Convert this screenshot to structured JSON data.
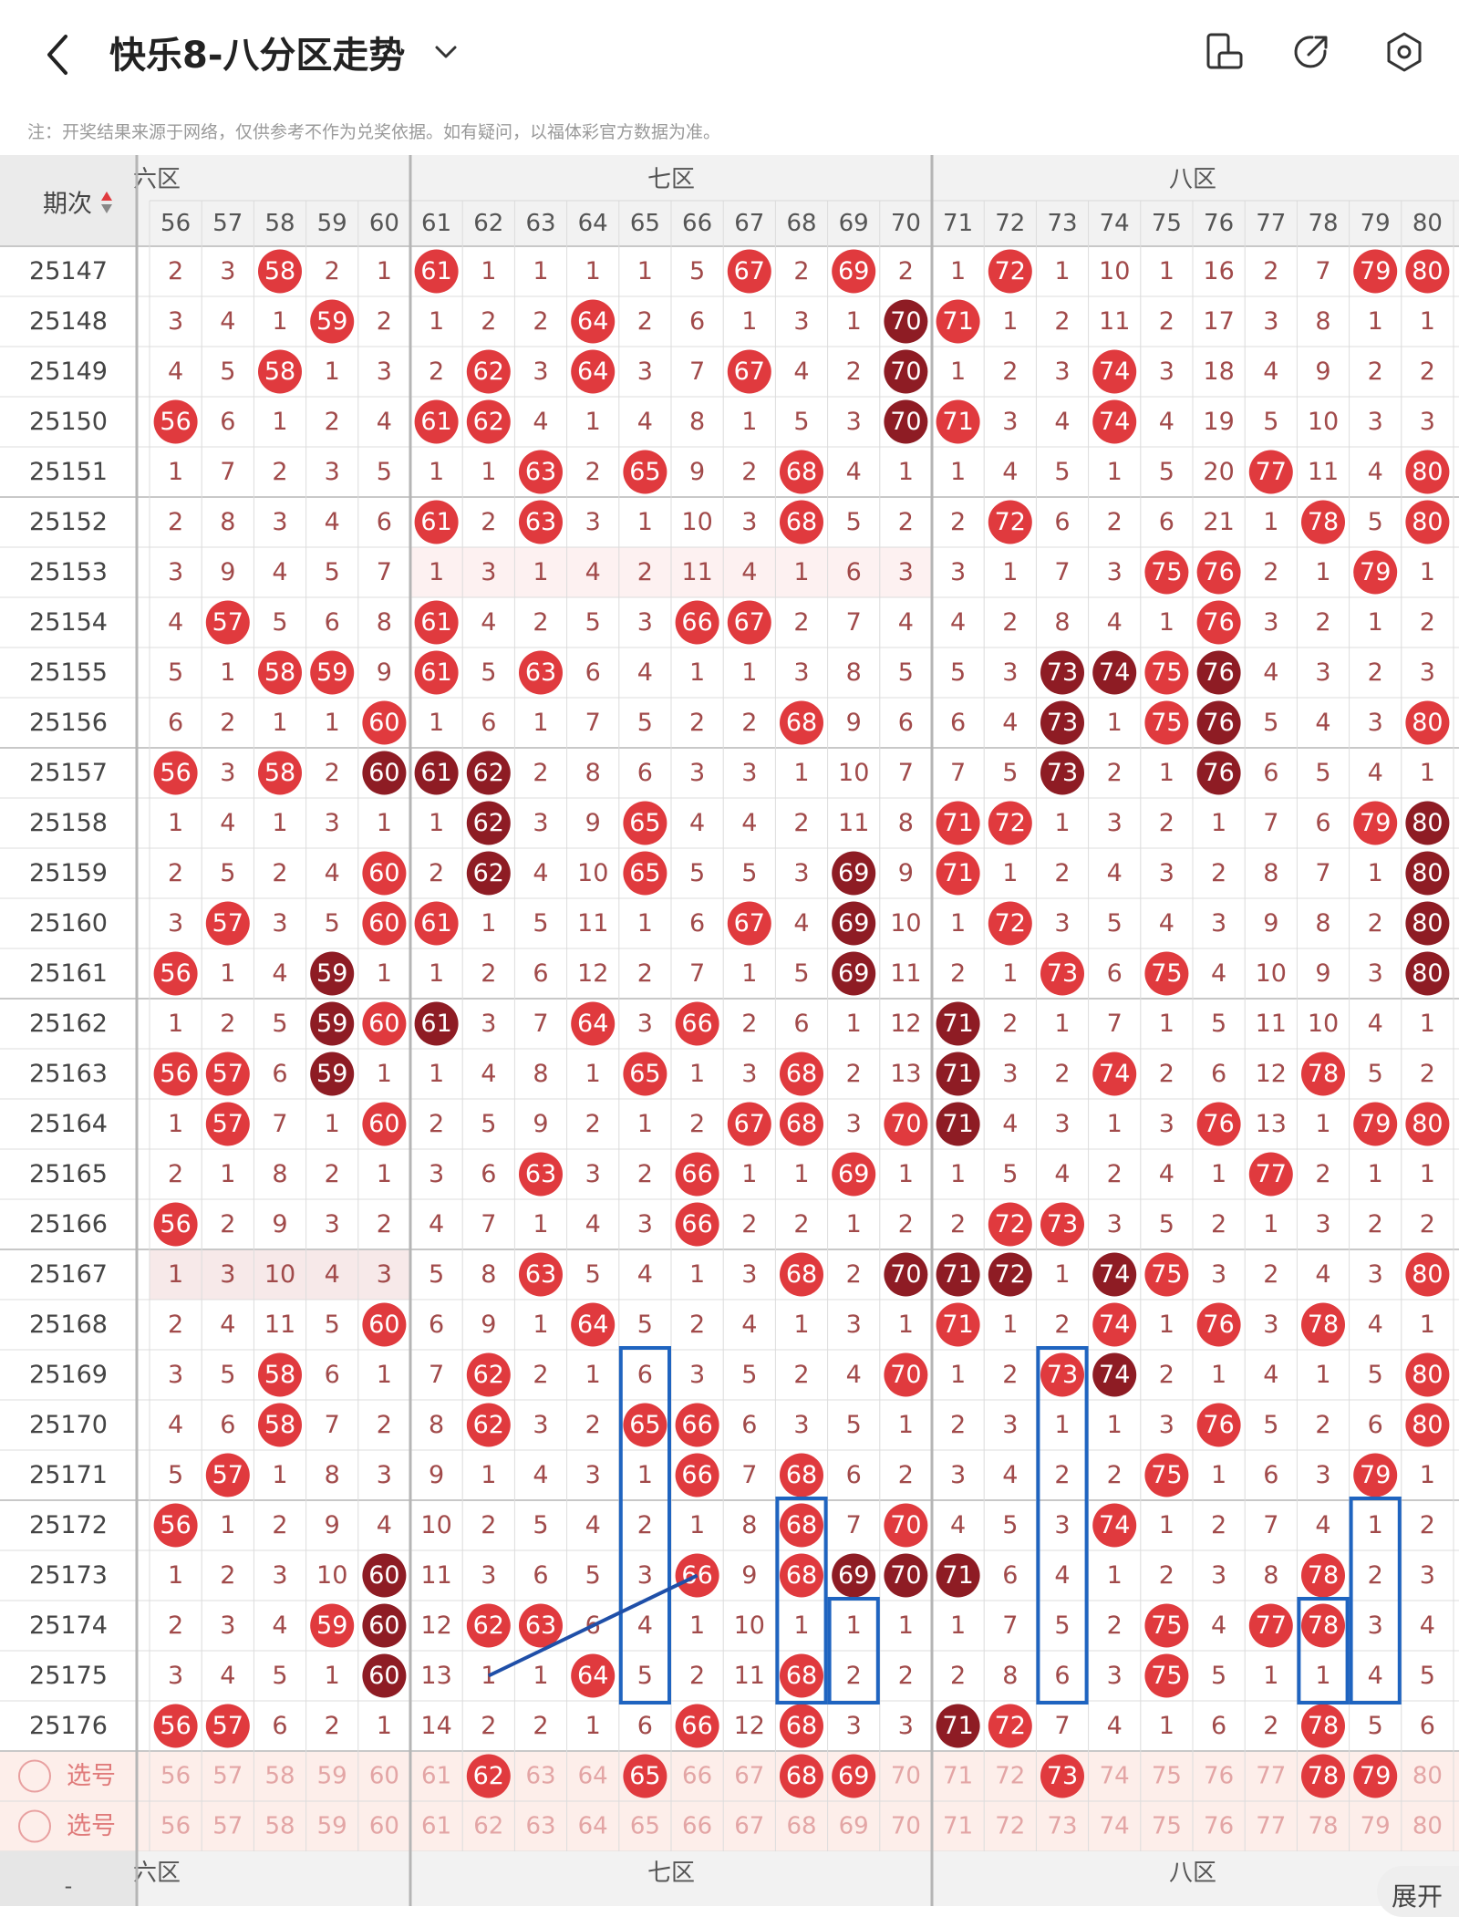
{
  "header": {
    "title": "快乐8-八分区走势",
    "note": "注：开奖结果来源于网络，仅供参考不作为兑奖依据。如有疑问，以福体彩官方数据为准。",
    "icons": [
      "back-arrow-icon",
      "chevron-down-icon",
      "device-rotate-icon",
      "share-icon",
      "settings-icon"
    ]
  },
  "table": {
    "period_header": "期次",
    "zones": [
      {
        "label": "六区",
        "shown": "六区"
      },
      {
        "label": "七区",
        "shown": "七区"
      },
      {
        "label": "八区",
        "shown": "八区"
      }
    ],
    "columns": [
      "56",
      "57",
      "58",
      "59",
      "60",
      "61",
      "62",
      "63",
      "64",
      "65",
      "66",
      "67",
      "68",
      "69",
      "70",
      "71",
      "72",
      "73",
      "74",
      "75",
      "76",
      "77",
      "78",
      "79",
      "80"
    ],
    "rows": [
      {
        "period": "25147",
        "cells": [
          "2",
          "3",
          "58",
          "2",
          "1",
          "61",
          "1",
          "1",
          "1",
          "1",
          "5",
          "67",
          "2",
          "69",
          "2",
          "1",
          "72",
          "1",
          "10",
          "1",
          "16",
          "2",
          "7",
          "79",
          "80"
        ]
      },
      {
        "period": "25148",
        "cells": [
          "3",
          "4",
          "1",
          "59",
          "2",
          "1",
          "2",
          "2",
          "64",
          "2",
          "6",
          "1",
          "3",
          "1",
          "70",
          "71",
          "1",
          "2",
          "11",
          "2",
          "17",
          "3",
          "8",
          "1",
          "1"
        ]
      },
      {
        "period": "25149",
        "cells": [
          "4",
          "5",
          "58",
          "1",
          "3",
          "2",
          "62",
          "3",
          "64",
          "3",
          "7",
          "67",
          "4",
          "2",
          "70",
          "1",
          "2",
          "3",
          "74",
          "3",
          "18",
          "4",
          "9",
          "2",
          "2"
        ]
      },
      {
        "period": "25150",
        "cells": [
          "56",
          "6",
          "1",
          "2",
          "4",
          "61",
          "62",
          "4",
          "1",
          "4",
          "8",
          "1",
          "5",
          "3",
          "70",
          "71",
          "3",
          "4",
          "74",
          "4",
          "19",
          "5",
          "10",
          "3",
          "3"
        ]
      },
      {
        "period": "25151",
        "cells": [
          "1",
          "7",
          "2",
          "3",
          "5",
          "1",
          "1",
          "63",
          "2",
          "65",
          "9",
          "2",
          "68",
          "4",
          "1",
          "1",
          "4",
          "5",
          "1",
          "5",
          "20",
          "77",
          "11",
          "4",
          "80"
        ]
      },
      {
        "period": "25152",
        "cells": [
          "2",
          "8",
          "3",
          "4",
          "6",
          "61",
          "2",
          "63",
          "3",
          "1",
          "10",
          "3",
          "68",
          "5",
          "2",
          "2",
          "72",
          "6",
          "2",
          "6",
          "21",
          "1",
          "78",
          "5",
          "80"
        ]
      },
      {
        "period": "25153",
        "cells": [
          "3",
          "9",
          "4",
          "5",
          "7",
          "1",
          "3",
          "1",
          "4",
          "2",
          "11",
          "4",
          "1",
          "6",
          "3",
          "3",
          "1",
          "7",
          "3",
          "75",
          "76",
          "2",
          "1",
          "79",
          "1"
        ]
      },
      {
        "period": "25154",
        "cells": [
          "4",
          "57",
          "5",
          "6",
          "8",
          "61",
          "4",
          "2",
          "5",
          "3",
          "66",
          "67",
          "2",
          "7",
          "4",
          "4",
          "2",
          "8",
          "4",
          "1",
          "76",
          "3",
          "2",
          "1",
          "2"
        ]
      },
      {
        "period": "25155",
        "cells": [
          "5",
          "1",
          "58",
          "59",
          "9",
          "61",
          "5",
          "63",
          "6",
          "4",
          "1",
          "1",
          "3",
          "8",
          "5",
          "5",
          "3",
          "73",
          "74",
          "75",
          "76",
          "4",
          "3",
          "2",
          "3"
        ]
      },
      {
        "period": "25156",
        "cells": [
          "6",
          "2",
          "1",
          "1",
          "60",
          "1",
          "6",
          "1",
          "7",
          "5",
          "2",
          "2",
          "68",
          "9",
          "6",
          "6",
          "4",
          "73",
          "1",
          "75",
          "76",
          "5",
          "4",
          "3",
          "80"
        ]
      },
      {
        "period": "25157",
        "cells": [
          "56",
          "3",
          "58",
          "2",
          "60",
          "61",
          "62",
          "2",
          "8",
          "6",
          "3",
          "3",
          "1",
          "10",
          "7",
          "7",
          "5",
          "73",
          "2",
          "1",
          "76",
          "6",
          "5",
          "4",
          "1"
        ]
      },
      {
        "period": "25158",
        "cells": [
          "1",
          "4",
          "1",
          "3",
          "1",
          "1",
          "62",
          "3",
          "9",
          "65",
          "4",
          "4",
          "2",
          "11",
          "8",
          "71",
          "72",
          "1",
          "3",
          "2",
          "1",
          "7",
          "6",
          "79",
          "80"
        ]
      },
      {
        "period": "25159",
        "cells": [
          "2",
          "5",
          "2",
          "4",
          "60",
          "2",
          "62",
          "4",
          "10",
          "65",
          "5",
          "5",
          "3",
          "69",
          "9",
          "71",
          "1",
          "2",
          "4",
          "3",
          "2",
          "8",
          "7",
          "1",
          "80"
        ]
      },
      {
        "period": "25160",
        "cells": [
          "3",
          "57",
          "3",
          "5",
          "60",
          "61",
          "1",
          "5",
          "11",
          "1",
          "6",
          "67",
          "4",
          "69",
          "10",
          "1",
          "72",
          "3",
          "5",
          "4",
          "3",
          "9",
          "8",
          "2",
          "80"
        ]
      },
      {
        "period": "25161",
        "cells": [
          "56",
          "1",
          "4",
          "59",
          "1",
          "1",
          "2",
          "6",
          "12",
          "2",
          "7",
          "1",
          "5",
          "69",
          "11",
          "2",
          "1",
          "73",
          "6",
          "75",
          "4",
          "10",
          "9",
          "3",
          "80"
        ]
      },
      {
        "period": "25162",
        "cells": [
          "1",
          "2",
          "5",
          "59",
          "60",
          "61",
          "3",
          "7",
          "64",
          "3",
          "66",
          "2",
          "6",
          "1",
          "12",
          "71",
          "2",
          "1",
          "7",
          "1",
          "5",
          "11",
          "10",
          "4",
          "1"
        ]
      },
      {
        "period": "25163",
        "cells": [
          "56",
          "57",
          "6",
          "59",
          "1",
          "1",
          "4",
          "8",
          "1",
          "65",
          "1",
          "3",
          "68",
          "2",
          "13",
          "71",
          "3",
          "2",
          "74",
          "2",
          "6",
          "12",
          "78",
          "5",
          "2"
        ]
      },
      {
        "period": "25164",
        "cells": [
          "1",
          "57",
          "7",
          "1",
          "60",
          "2",
          "5",
          "9",
          "2",
          "1",
          "2",
          "67",
          "68",
          "3",
          "70",
          "71",
          "4",
          "3",
          "1",
          "3",
          "76",
          "13",
          "1",
          "79",
          "80"
        ]
      },
      {
        "period": "25165",
        "cells": [
          "2",
          "1",
          "8",
          "2",
          "1",
          "3",
          "6",
          "63",
          "3",
          "2",
          "66",
          "1",
          "1",
          "69",
          "1",
          "1",
          "5",
          "4",
          "2",
          "4",
          "1",
          "77",
          "2",
          "1",
          "1"
        ]
      },
      {
        "period": "25166",
        "cells": [
          "56",
          "2",
          "9",
          "3",
          "2",
          "4",
          "7",
          "1",
          "4",
          "3",
          "66",
          "2",
          "2",
          "1",
          "2",
          "2",
          "72",
          "73",
          "3",
          "5",
          "2",
          "1",
          "3",
          "2",
          "2"
        ]
      },
      {
        "period": "25167",
        "cells": [
          "1",
          "3",
          "10",
          "4",
          "3",
          "5",
          "8",
          "63",
          "5",
          "4",
          "1",
          "3",
          "68",
          "2",
          "70",
          "71",
          "72",
          "1",
          "74",
          "75",
          "3",
          "2",
          "4",
          "3",
          "80"
        ]
      },
      {
        "period": "25168",
        "cells": [
          "2",
          "4",
          "11",
          "5",
          "60",
          "6",
          "9",
          "1",
          "64",
          "5",
          "2",
          "4",
          "1",
          "3",
          "1",
          "71",
          "1",
          "2",
          "74",
          "1",
          "76",
          "3",
          "78",
          "4",
          "1"
        ]
      },
      {
        "period": "25169",
        "cells": [
          "3",
          "5",
          "58",
          "6",
          "1",
          "7",
          "62",
          "2",
          "1",
          "6",
          "3",
          "5",
          "2",
          "4",
          "70",
          "1",
          "2",
          "73",
          "74",
          "2",
          "1",
          "4",
          "1",
          "5",
          "80"
        ]
      },
      {
        "period": "25170",
        "cells": [
          "4",
          "6",
          "58",
          "7",
          "2",
          "8",
          "62",
          "3",
          "2",
          "65",
          "66",
          "6",
          "3",
          "5",
          "1",
          "2",
          "3",
          "1",
          "1",
          "3",
          "76",
          "5",
          "2",
          "6",
          "80"
        ]
      },
      {
        "period": "25171",
        "cells": [
          "5",
          "57",
          "1",
          "8",
          "3",
          "9",
          "1",
          "4",
          "3",
          "1",
          "66",
          "7",
          "68",
          "6",
          "2",
          "3",
          "4",
          "2",
          "2",
          "75",
          "1",
          "6",
          "3",
          "79",
          "1"
        ]
      },
      {
        "period": "25172",
        "cells": [
          "56",
          "1",
          "2",
          "9",
          "4",
          "10",
          "2",
          "5",
          "4",
          "2",
          "1",
          "8",
          "68",
          "7",
          "70",
          "4",
          "5",
          "3",
          "74",
          "1",
          "2",
          "7",
          "4",
          "1",
          "2"
        ]
      },
      {
        "period": "25173",
        "cells": [
          "1",
          "2",
          "3",
          "10",
          "60",
          "11",
          "3",
          "6",
          "5",
          "3",
          "66",
          "9",
          "68",
          "69",
          "70",
          "71",
          "6",
          "4",
          "1",
          "2",
          "3",
          "8",
          "78",
          "2",
          "3"
        ]
      },
      {
        "period": "25174",
        "cells": [
          "2",
          "3",
          "4",
          "59",
          "60",
          "12",
          "62",
          "63",
          "6",
          "4",
          "1",
          "10",
          "1",
          "1",
          "1",
          "1",
          "7",
          "5",
          "2",
          "75",
          "4",
          "77",
          "78",
          "3",
          "4"
        ]
      },
      {
        "period": "25175",
        "cells": [
          "3",
          "4",
          "5",
          "1",
          "60",
          "13",
          "1",
          "1",
          "64",
          "5",
          "2",
          "11",
          "68",
          "2",
          "2",
          "2",
          "8",
          "6",
          "3",
          "75",
          "5",
          "1",
          "1",
          "4",
          "5"
        ]
      },
      {
        "period": "25176",
        "cells": [
          "56",
          "57",
          "6",
          "2",
          "1",
          "14",
          "2",
          "2",
          "1",
          "6",
          "66",
          "12",
          "68",
          "3",
          "3",
          "71",
          "72",
          "7",
          "4",
          "1",
          "6",
          "2",
          "78",
          "5",
          "6"
        ]
      }
    ],
    "select_rows": [
      {
        "label": "选号",
        "selected": [
          "62",
          "65",
          "68",
          "69",
          "73",
          "78",
          "79"
        ]
      },
      {
        "label": "选号",
        "selected": []
      }
    ],
    "expand_label": "展开",
    "footer_placeholder": "-"
  },
  "colors": {
    "red_ball": "#e03a3e",
    "dark_ball": "#8e1c24",
    "number_text": "#a14a4a",
    "grid_line": "#dcdcdc",
    "header_bg": "#f2f2f2",
    "select_bg": "#fdeeea",
    "highlight_blue": "#1f64c0"
  }
}
